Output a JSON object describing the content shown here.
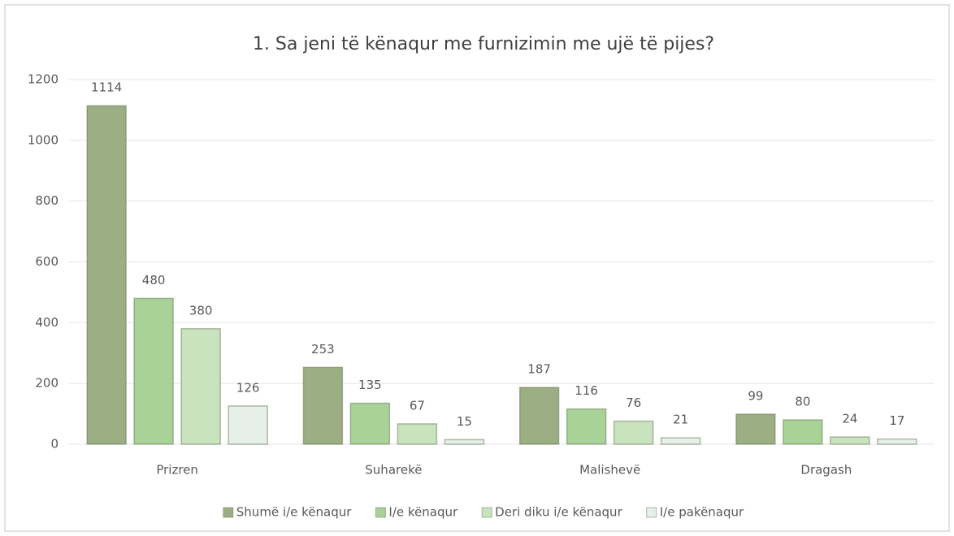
{
  "chart_data": {
    "type": "bar",
    "title": "1. Sa jeni të kënaqur me furnizimin me ujë të pijes?",
    "categories": [
      "Prizren",
      "Suharekë",
      "Malishevë",
      "Dragash"
    ],
    "series": [
      {
        "name": "Shumë i/e kënaqur",
        "color": "#9cae84",
        "values": [
          1114,
          253,
          187,
          99
        ]
      },
      {
        "name": "I/e kënaqur",
        "color": "#a8d297",
        "values": [
          480,
          135,
          116,
          80
        ]
      },
      {
        "name": "Deri diku i/e kënaqur",
        "color": "#c9e3bf",
        "values": [
          380,
          67,
          76,
          24
        ]
      },
      {
        "name": "I/e pakënaqur",
        "color": "#e6efe8",
        "values": [
          126,
          15,
          21,
          17
        ]
      }
    ],
    "ylim": [
      0,
      1200
    ],
    "yticks": [
      0,
      200,
      400,
      600,
      800,
      1000,
      1200
    ],
    "grid": true,
    "legend": "bottom"
  }
}
